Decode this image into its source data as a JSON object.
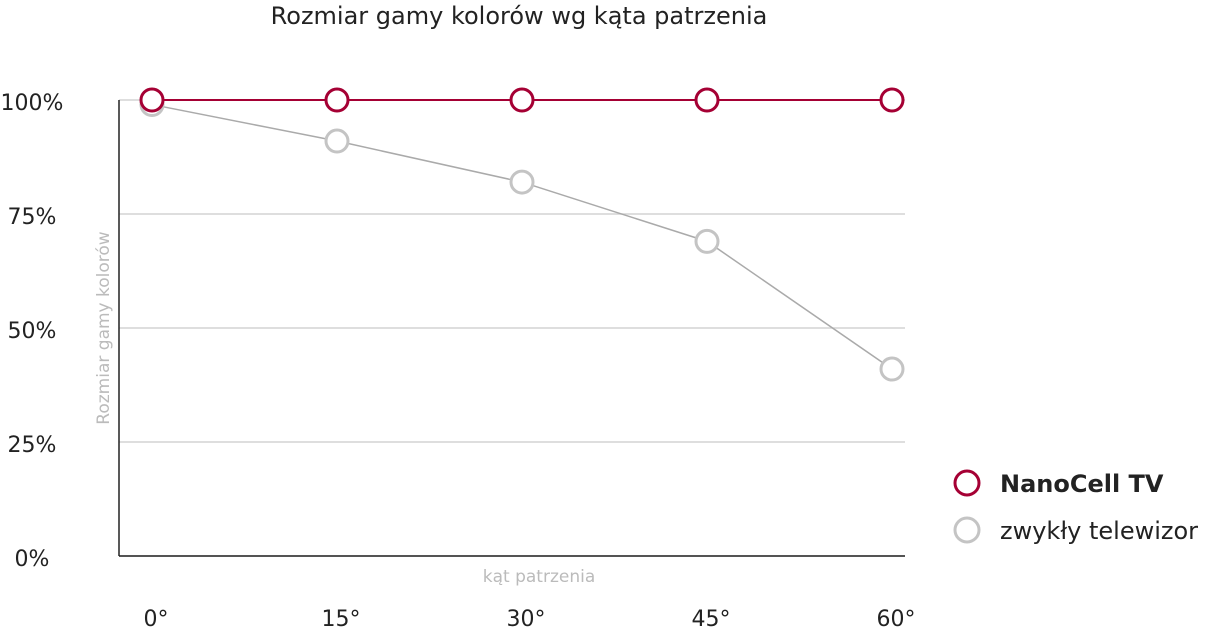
{
  "chart_data": {
    "type": "line",
    "title": "Rozmiar gamy kolorów wg kąta patrzenia",
    "y_label": "Rozmiar gamy kolorów",
    "x_label": "kąt patrzenia",
    "categories": [
      "0°",
      "15°",
      "30°",
      "45°",
      "60°"
    ],
    "series": [
      {
        "name": "NanoCell TV",
        "color": "#a50034",
        "values": [
          100,
          100,
          100,
          100,
          100
        ]
      },
      {
        "name": "zwykły telewizor",
        "color": "#c4c4c4",
        "values": [
          99,
          91,
          82,
          69,
          41
        ]
      }
    ],
    "ylim": [
      0,
      100
    ],
    "yticks": [
      {
        "value": 0,
        "label": "0%"
      },
      {
        "value": 25,
        "label": "25%"
      },
      {
        "value": 50,
        "label": "50%"
      },
      {
        "value": 75,
        "label": "75%"
      },
      {
        "value": 100,
        "label": "100%"
      }
    ],
    "grid": true
  }
}
